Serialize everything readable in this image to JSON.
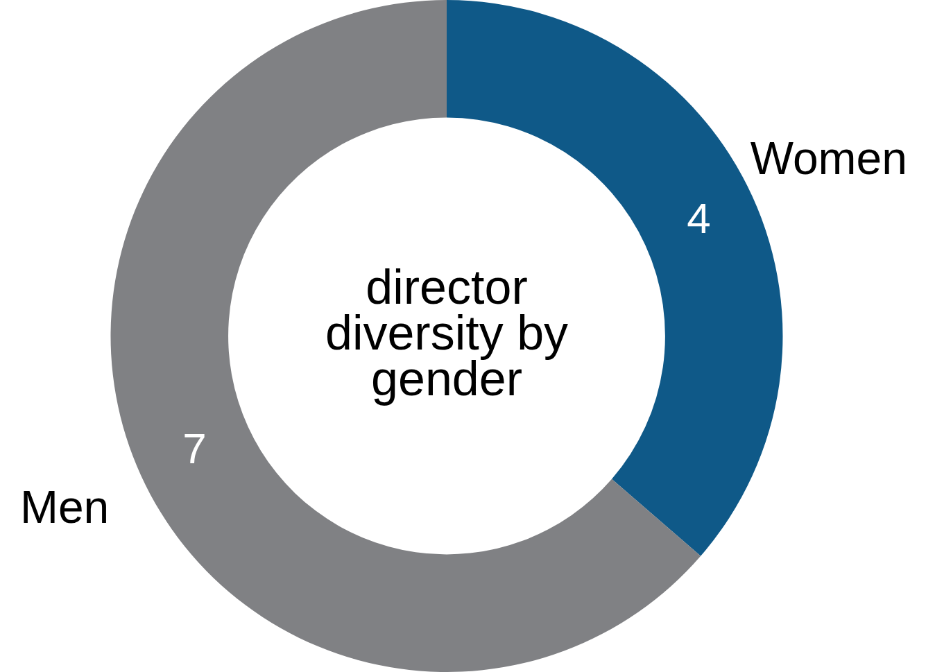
{
  "chart_data": {
    "type": "donut",
    "title": "director diversity by gender",
    "categories": [
      "Women",
      "Men"
    ],
    "values": [
      4,
      7
    ],
    "colors": [
      "#0f5988",
      "#808184"
    ],
    "data_labels": true,
    "legend": false
  }
}
